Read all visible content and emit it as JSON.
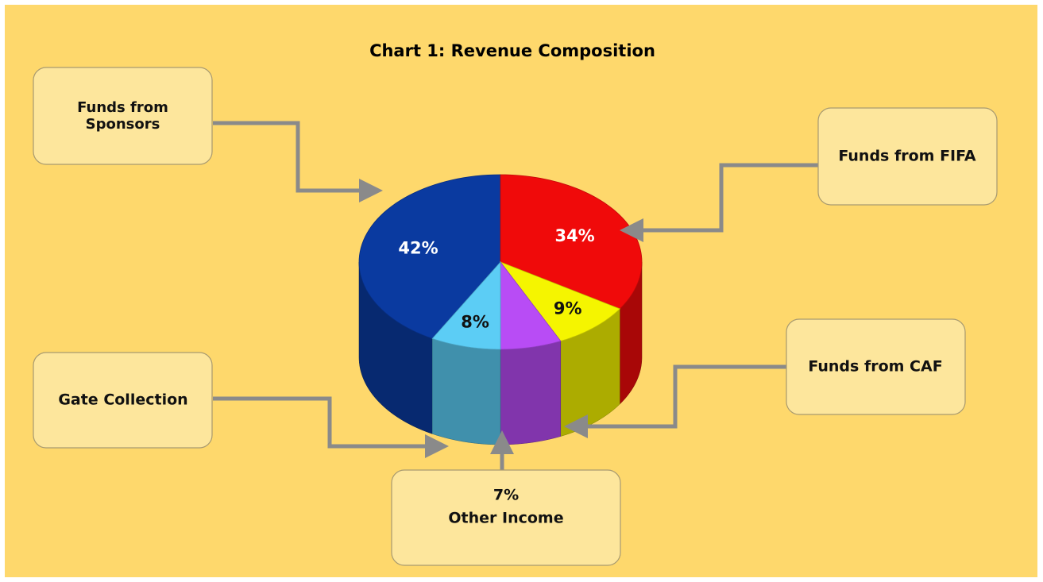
{
  "chart_data": {
    "type": "pie",
    "title": "Chart 1: Revenue Composition",
    "categories": [
      "Funds from Sponsors",
      "Funds from FIFA",
      "Funds from CAF",
      "Other Income",
      "Gate Collection"
    ],
    "values": [
      42,
      34,
      9,
      7,
      8
    ],
    "value_labels": [
      "42%",
      "34%",
      "9%",
      "7%",
      "8%"
    ],
    "colors": [
      "#0a3aa0",
      "#f00a0a",
      "#f5f500",
      "#b84cf5",
      "#5ccdf5"
    ]
  }
}
